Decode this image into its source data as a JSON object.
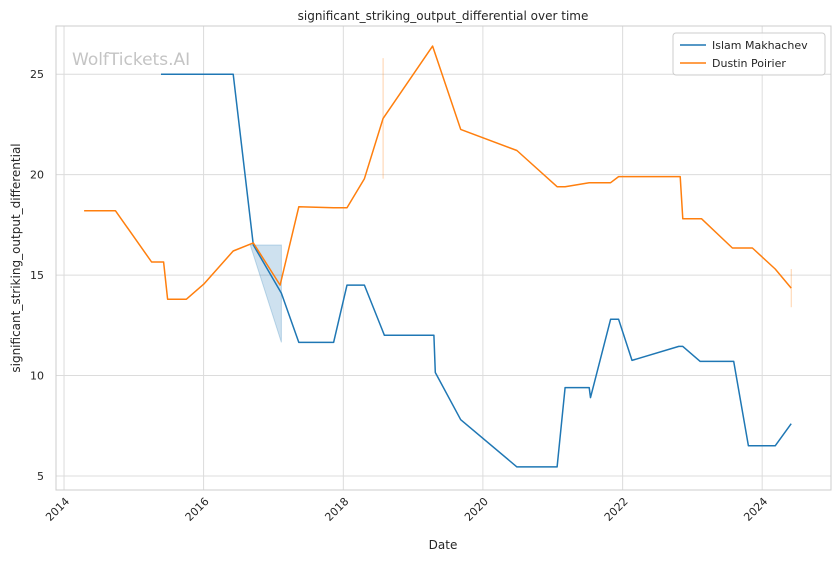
{
  "chart_data": {
    "type": "line",
    "title": "significant_striking_output_differential over time",
    "xlabel": "Date",
    "ylabel": "significant_striking_output_differential",
    "watermark": "WolfTickets.AI",
    "xlim": [
      "2013-11-20",
      "2024-12-26"
    ],
    "ylim": [
      4.3,
      27.4
    ],
    "x_ticks": [
      "2014",
      "2016",
      "2018",
      "2020",
      "2022",
      "2024"
    ],
    "y_ticks": [
      5,
      10,
      15,
      20,
      25
    ],
    "grid": true,
    "legend_position": "top-right",
    "series": [
      {
        "name": "Islam Makhachev",
        "color": "#1f77b4",
        "points": [
          [
            "2015-05-23",
            25.0
          ],
          [
            "2016-06-04",
            25.0
          ],
          [
            "2016-09-17",
            16.5
          ],
          [
            "2017-02-11",
            14.1
          ],
          [
            "2017-05-13",
            11.65
          ],
          [
            "2017-11-11",
            11.65
          ],
          [
            "2018-01-20",
            14.5
          ],
          [
            "2018-04-21",
            14.5
          ],
          [
            "2018-08-04",
            12.0
          ],
          [
            "2019-04-20",
            12.0
          ],
          [
            "2019-04-27",
            10.15
          ],
          [
            "2019-09-07",
            7.8
          ],
          [
            "2020-06-27",
            5.45
          ],
          [
            "2021-01-23",
            5.45
          ],
          [
            "2021-03-06",
            9.4
          ],
          [
            "2021-07-10",
            9.4
          ],
          [
            "2021-07-17",
            8.9
          ],
          [
            "2021-10-30",
            12.8
          ],
          [
            "2021-12-11",
            12.8
          ],
          [
            "2022-02-19",
            10.75
          ],
          [
            "2022-10-22",
            11.45
          ],
          [
            "2022-11-12",
            11.45
          ],
          [
            "2023-02-11",
            10.7
          ],
          [
            "2023-08-05",
            10.7
          ],
          [
            "2023-10-21",
            6.5
          ],
          [
            "2024-03-09",
            6.5
          ],
          [
            "2024-06-01",
            7.6
          ]
        ],
        "confidence_band": [
          [
            "2016-09-01",
            16.5,
            16.5
          ],
          [
            "2017-02-11",
            11.65,
            16.5
          ]
        ]
      },
      {
        "name": "Dustin Poirier",
        "color": "#ff7f0e",
        "points": [
          [
            "2014-04-16",
            18.2
          ],
          [
            "2014-09-27",
            18.2
          ],
          [
            "2015-04-04",
            15.65
          ],
          [
            "2015-06-06",
            15.65
          ],
          [
            "2015-06-27",
            13.8
          ],
          [
            "2015-10-03",
            13.8
          ],
          [
            "2016-01-02",
            14.55
          ],
          [
            "2016-06-04",
            16.2
          ],
          [
            "2016-09-17",
            16.6
          ],
          [
            "2017-02-04",
            14.5
          ],
          [
            "2017-05-13",
            18.4
          ],
          [
            "2017-11-11",
            18.35
          ],
          [
            "2018-01-20",
            18.35
          ],
          [
            "2018-04-21",
            19.8
          ],
          [
            "2018-07-28",
            22.8
          ],
          [
            "2019-04-13",
            26.4
          ],
          [
            "2019-09-07",
            22.25
          ],
          [
            "2020-06-27",
            21.2
          ],
          [
            "2021-01-23",
            19.4
          ],
          [
            "2021-03-06",
            19.4
          ],
          [
            "2021-07-10",
            19.6
          ],
          [
            "2021-10-30",
            19.6
          ],
          [
            "2021-12-11",
            19.9
          ],
          [
            "2022-10-29",
            19.9
          ],
          [
            "2022-11-12",
            17.8
          ],
          [
            "2023-02-18",
            17.8
          ],
          [
            "2023-07-29",
            16.35
          ],
          [
            "2023-11-11",
            16.35
          ],
          [
            "2024-03-09",
            15.3
          ],
          [
            "2024-06-01",
            14.35
          ]
        ],
        "confidence_band": [
          [
            "2018-07-28",
            19.8,
            25.8
          ],
          [
            "2024-06-01",
            13.4,
            15.3
          ]
        ]
      }
    ]
  }
}
